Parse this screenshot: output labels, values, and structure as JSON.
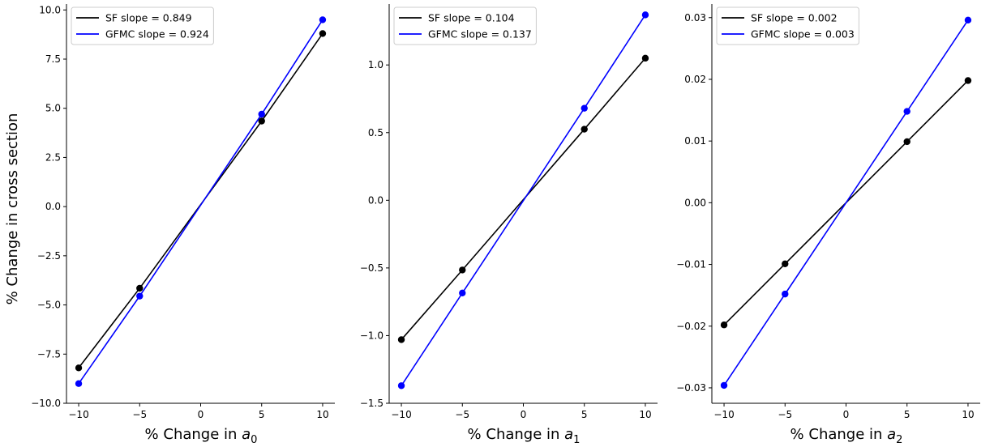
{
  "figure": {
    "ylabel": "% Change in cross section"
  },
  "chart_data": [
    {
      "type": "line",
      "xlabel_prefix": "% Change in ",
      "xlabel_var": "a",
      "xlabel_sub": "0",
      "xlim": [
        -11,
        11
      ],
      "ylim": [
        -10,
        10.3
      ],
      "xticks": [
        -10,
        -5,
        0,
        5,
        10
      ],
      "yticks": [
        -10.0,
        -7.5,
        -5.0,
        -2.5,
        0.0,
        2.5,
        5.0,
        7.5,
        10.0
      ],
      "yticklabels": [
        "−10.0",
        "−7.5",
        "−5.0",
        "−2.5",
        "0.0",
        "2.5",
        "5.0",
        "7.5",
        "10.0"
      ],
      "xticklabels": [
        "−10",
        "−5",
        "0",
        "5",
        "10"
      ],
      "legend_position": "top-left",
      "series": [
        {
          "name": "SF slope = 0.849",
          "color": "#000000",
          "x": [
            -10,
            -5,
            5,
            10
          ],
          "y": [
            -8.2,
            -4.15,
            4.35,
            8.8
          ]
        },
        {
          "name": "GFMC slope = 0.924",
          "color": "#0000ff",
          "x": [
            -10,
            -5,
            5,
            10
          ],
          "y": [
            -9.0,
            -4.55,
            4.7,
            9.5
          ]
        }
      ]
    },
    {
      "type": "line",
      "xlabel_prefix": "% Change in ",
      "xlabel_var": "a",
      "xlabel_sub": "1",
      "xlim": [
        -11,
        11
      ],
      "ylim": [
        -1.5,
        1.45
      ],
      "xticks": [
        -10,
        -5,
        0,
        5,
        10
      ],
      "yticks": [
        -1.5,
        -1.0,
        -0.5,
        0.0,
        0.5,
        1.0
      ],
      "yticklabels": [
        "−1.5",
        "−1.0",
        "−0.5",
        "0.0",
        "0.5",
        "1.0"
      ],
      "xticklabels": [
        "−10",
        "−5",
        "0",
        "5",
        "10"
      ],
      "legend_position": "top-left",
      "series": [
        {
          "name": "SF slope = 0.104",
          "color": "#000000",
          "x": [
            -10,
            -5,
            5,
            10
          ],
          "y": [
            -1.03,
            -0.515,
            0.525,
            1.05
          ]
        },
        {
          "name": "GFMC slope = 0.137",
          "color": "#0000ff",
          "x": [
            -10,
            -5,
            5,
            10
          ],
          "y": [
            -1.37,
            -0.685,
            0.68,
            1.37
          ]
        }
      ]
    },
    {
      "type": "line",
      "xlabel_prefix": "% Change in ",
      "xlabel_var": "a",
      "xlabel_sub": "2",
      "xlim": [
        -11,
        11
      ],
      "ylim": [
        -0.0325,
        0.0322
      ],
      "xticks": [
        -10,
        -5,
        0,
        5,
        10
      ],
      "yticks": [
        -0.03,
        -0.02,
        -0.01,
        0.0,
        0.01,
        0.02,
        0.03
      ],
      "yticklabels": [
        "−0.03",
        "−0.02",
        "−0.01",
        "0.00",
        "0.01",
        "0.02",
        "0.03"
      ],
      "xticklabels": [
        "−10",
        "−5",
        "0",
        "5",
        "10"
      ],
      "legend_position": "top-left",
      "series": [
        {
          "name": "SF slope = 0.002",
          "color": "#000000",
          "x": [
            -10,
            -5,
            5,
            10
          ],
          "y": [
            -0.0198,
            -0.0099,
            0.0099,
            0.0198
          ]
        },
        {
          "name": "GFMC slope = 0.003",
          "color": "#0000ff",
          "x": [
            -10,
            -5,
            5,
            10
          ],
          "y": [
            -0.0296,
            -0.0148,
            0.0148,
            0.0296
          ]
        }
      ]
    }
  ]
}
